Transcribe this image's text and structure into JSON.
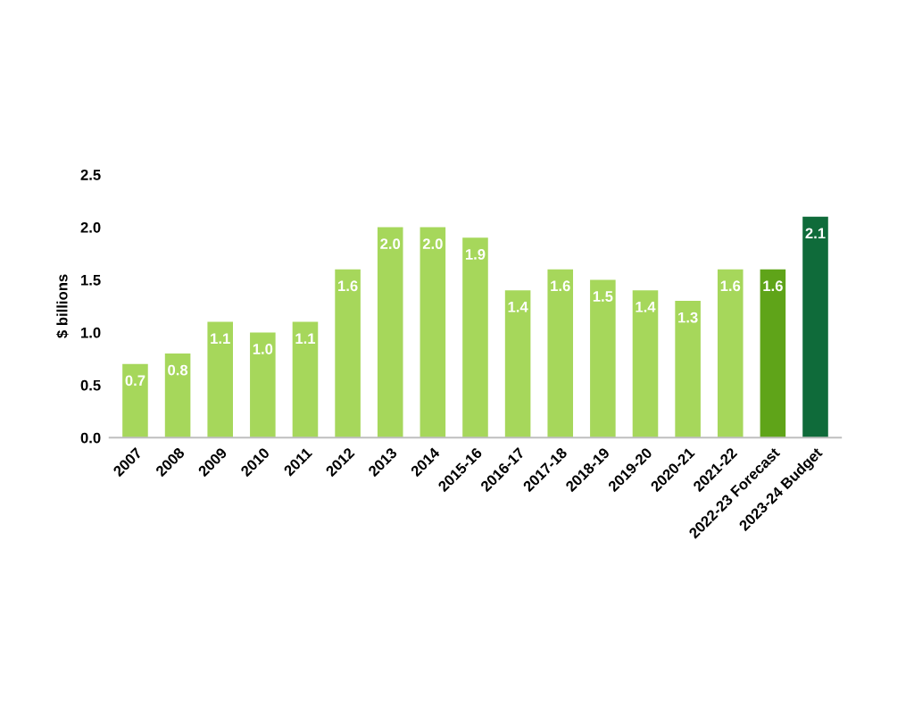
{
  "chart_data": {
    "type": "bar",
    "ylabel": "$ billions",
    "categories": [
      "2007",
      "2008",
      "2009",
      "2010",
      "2011",
      "2012",
      "2013",
      "2014",
      "2015-16",
      "2016-17",
      "2017-18",
      "2018-19",
      "2019-20",
      "2020-21",
      "2021-22",
      "2022-23 Forecast",
      "2023-24 Budget"
    ],
    "values": [
      0.7,
      0.8,
      1.1,
      1.0,
      1.1,
      1.6,
      2.0,
      2.0,
      1.9,
      1.4,
      1.6,
      1.5,
      1.4,
      1.3,
      1.6,
      1.6,
      2.1
    ],
    "colors": [
      "#a6d75b",
      "#a6d75b",
      "#a6d75b",
      "#a6d75b",
      "#a6d75b",
      "#a6d75b",
      "#a6d75b",
      "#a6d75b",
      "#a6d75b",
      "#a6d75b",
      "#a6d75b",
      "#a6d75b",
      "#a6d75b",
      "#a6d75b",
      "#a6d75b",
      "#5fa419",
      "#0f6b3a"
    ],
    "value_labels": [
      "0.7",
      "0.8",
      "1.1",
      "1.0",
      "1.1",
      "1.6",
      "2.0",
      "2.0",
      "1.9",
      "1.4",
      "1.6",
      "1.5",
      "1.4",
      "1.3",
      "1.6",
      "1.6",
      "2.1"
    ],
    "ylim": [
      0,
      2.5
    ],
    "yticks": [
      {
        "value": 0,
        "label": "0.0"
      },
      {
        "value": 0.5,
        "label": "0.5"
      },
      {
        "value": 1,
        "label": "1.0"
      },
      {
        "value": 1.5,
        "label": "1.5"
      },
      {
        "value": 2,
        "label": "2.0"
      },
      {
        "value": 2.5,
        "label": "2.5"
      }
    ],
    "grid": false,
    "legend": false
  }
}
